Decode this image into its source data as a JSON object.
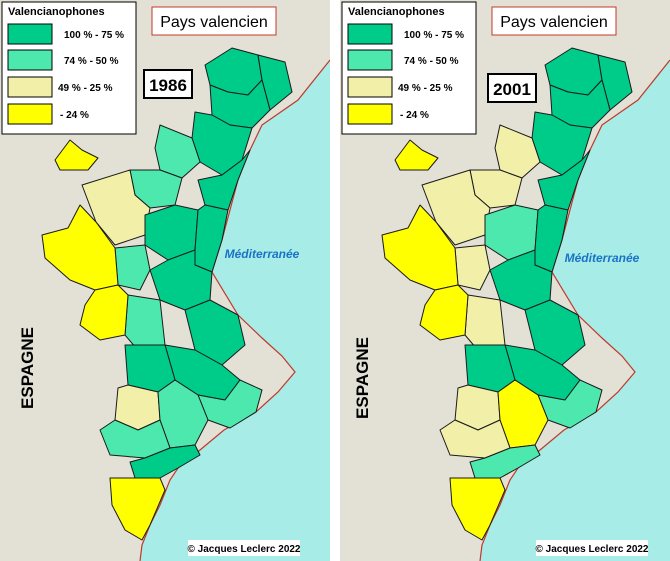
{
  "colors": {
    "land": "#e3e0d6",
    "sea": "#a7ece6",
    "coast": "#d73a2a",
    "band_100_75": "#00cc8a",
    "band_74_50": "#4ce8ad",
    "band_49_25": "#f1efa8",
    "band_24": "#ffff00"
  },
  "legend": {
    "title": "Valencianophones",
    "items": [
      {
        "label": "100 % - 75 %",
        "color_key": "band_100_75"
      },
      {
        "label": "74 % - 50 %",
        "color_key": "band_74_50"
      },
      {
        "label": "49 % - 25 %",
        "color_key": "band_49_25"
      },
      {
        "label": "- 24 %",
        "color_key": "band_24"
      }
    ]
  },
  "panels": [
    {
      "year": "1986",
      "region_title": "Pays valencien",
      "sea_label": "Méditerranée",
      "country_label": "ESPAGNE",
      "credit": "© Jacques Leclerc 2022",
      "comarques": [
        {
          "name": "north-1",
          "band": "band_100_75"
        },
        {
          "name": "north-2",
          "band": "band_100_75"
        },
        {
          "name": "north-3",
          "band": "band_100_75"
        },
        {
          "name": "north-4",
          "band": "band_100_75"
        },
        {
          "name": "north-5",
          "band": "band_100_75"
        },
        {
          "name": "north-inland-1",
          "band": "band_74_50"
        },
        {
          "name": "north-inland-2",
          "band": "band_74_50"
        },
        {
          "name": "north-inland-3",
          "band": "band_49_25"
        },
        {
          "name": "center-1",
          "band": "band_100_75"
        },
        {
          "name": "center-2",
          "band": "band_100_75"
        },
        {
          "name": "center-3",
          "band": "band_100_75"
        },
        {
          "name": "center-4",
          "band": "band_100_75"
        },
        {
          "name": "center-inland-1",
          "band": "band_74_50"
        },
        {
          "name": "center-inland-2",
          "band": "band_74_50"
        },
        {
          "name": "west-1",
          "band": "band_24"
        },
        {
          "name": "west-2",
          "band": "band_24"
        },
        {
          "name": "enclave",
          "band": "band_24"
        },
        {
          "name": "south-1",
          "band": "band_100_75"
        },
        {
          "name": "south-2",
          "band": "band_100_75"
        },
        {
          "name": "south-3",
          "band": "band_74_50"
        },
        {
          "name": "south-4",
          "band": "band_49_25"
        },
        {
          "name": "south-5",
          "band": "band_74_50"
        },
        {
          "name": "south-6",
          "band": "band_74_50"
        },
        {
          "name": "south-7",
          "band": "band_100_75"
        },
        {
          "name": "far-south",
          "band": "band_24"
        }
      ]
    },
    {
      "year": "2001",
      "region_title": "Pays valencien",
      "sea_label": "Méditerranée",
      "country_label": "ESPAGNE",
      "credit": "© Jacques Leclerc 2022",
      "comarques": [
        {
          "name": "north-1",
          "band": "band_100_75"
        },
        {
          "name": "north-2",
          "band": "band_100_75"
        },
        {
          "name": "north-3",
          "band": "band_100_75"
        },
        {
          "name": "north-4",
          "band": "band_100_75"
        },
        {
          "name": "north-5",
          "band": "band_100_75"
        },
        {
          "name": "north-inland-1",
          "band": "band_49_25"
        },
        {
          "name": "north-inland-2",
          "band": "band_49_25"
        },
        {
          "name": "north-inland-3",
          "band": "band_49_25"
        },
        {
          "name": "center-1",
          "band": "band_74_50"
        },
        {
          "name": "center-2",
          "band": "band_100_75"
        },
        {
          "name": "center-3",
          "band": "band_100_75"
        },
        {
          "name": "center-4",
          "band": "band_100_75"
        },
        {
          "name": "center-inland-1",
          "band": "band_49_25"
        },
        {
          "name": "center-inland-2",
          "band": "band_49_25"
        },
        {
          "name": "west-1",
          "band": "band_24"
        },
        {
          "name": "west-2",
          "band": "band_24"
        },
        {
          "name": "enclave",
          "band": "band_24"
        },
        {
          "name": "south-1",
          "band": "band_100_75"
        },
        {
          "name": "south-2",
          "band": "band_100_75"
        },
        {
          "name": "south-3",
          "band": "band_74_50"
        },
        {
          "name": "south-4",
          "band": "band_49_25"
        },
        {
          "name": "south-5",
          "band": "band_24"
        },
        {
          "name": "south-6",
          "band": "band_49_25"
        },
        {
          "name": "south-7",
          "band": "band_74_50"
        },
        {
          "name": "far-south",
          "band": "band_24"
        }
      ]
    }
  ]
}
